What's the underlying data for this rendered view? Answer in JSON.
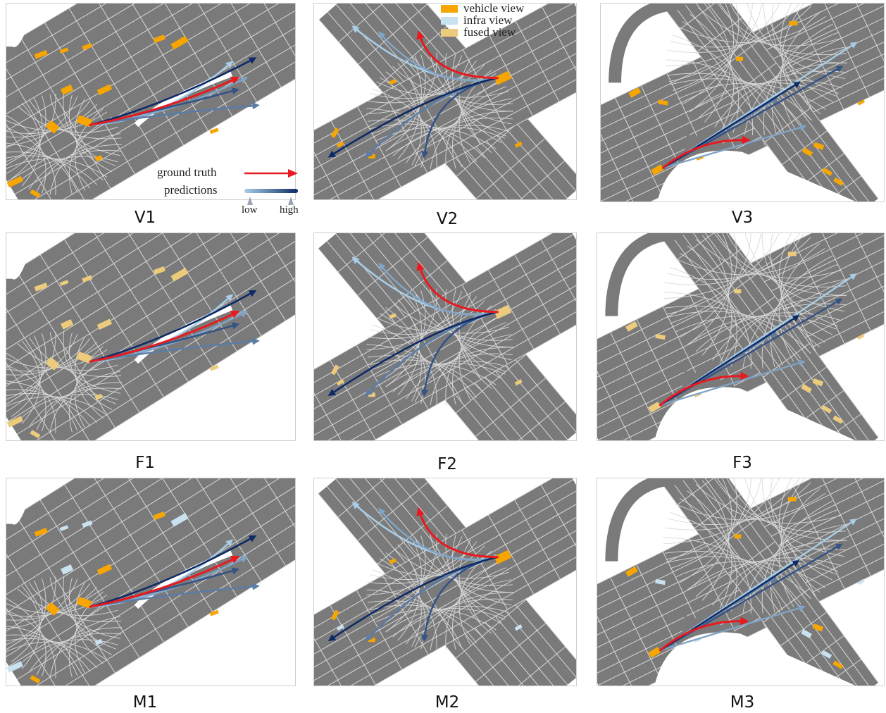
{
  "legend": {
    "vehicle_view": "vehicle view",
    "infra_view": "infra view",
    "fused_view": "fused view",
    "ground_truth": "ground truth",
    "predictions": "predictions",
    "low": "low",
    "high": "high"
  },
  "colors": {
    "road": "#7a7a7a",
    "lane_line": "#d9d9d9",
    "vehicle_view": "#f7a500",
    "infra_view": "#c9e2ef",
    "fused_view": "#eccb7d",
    "ground_truth": "#e8191f",
    "pred_low": "#a8cde6",
    "pred_high": "#0d2a66"
  },
  "panels": [
    {
      "caption": "V1",
      "scene": "s1",
      "view": "vehicle_view"
    },
    {
      "caption": "V2",
      "scene": "s2",
      "view": "vehicle_view"
    },
    {
      "caption": "V3",
      "scene": "s3",
      "view": "vehicle_view"
    },
    {
      "caption": "F1",
      "scene": "s1",
      "view": "fused_view"
    },
    {
      "caption": "F2",
      "scene": "s2",
      "view": "fused_view"
    },
    {
      "caption": "F3",
      "scene": "s3",
      "view": "fused_view"
    },
    {
      "caption": "M1",
      "scene": "s1",
      "view": "mixed"
    },
    {
      "caption": "M2",
      "scene": "s2",
      "view": "mixed"
    },
    {
      "caption": "M3",
      "scene": "s3",
      "view": "mixed"
    }
  ]
}
